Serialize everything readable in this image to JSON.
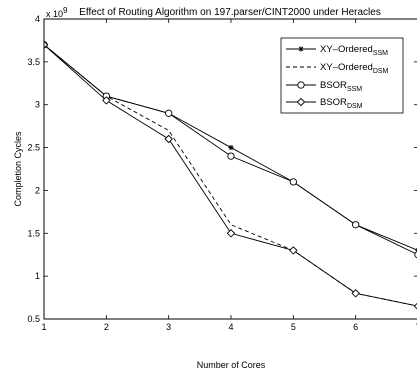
{
  "chart_data": {
    "type": "line",
    "title": "Effect of Routing Algorithm on 197.parser/CINT2000 under Heracles",
    "xlabel": "Number of Cores",
    "ylabel": "Completion Cycles",
    "y_exponent_label": "x 10",
    "y_exponent_power": "9",
    "xlim": [
      1,
      7
    ],
    "ylim": [
      0.5,
      4
    ],
    "x_ticks": [
      1,
      2,
      3,
      4,
      5,
      6,
      7
    ],
    "y_ticks": [
      0.5,
      1,
      1.5,
      2,
      2.5,
      3,
      3.5,
      4
    ],
    "x_tick_labels": [
      "1",
      "2",
      "3",
      "4",
      "5",
      "6",
      "7"
    ],
    "y_tick_labels": [
      "0.5",
      "1",
      "1.5",
      "2",
      "2.5",
      "3",
      "3.5",
      "4"
    ],
    "grid": false,
    "legend_position": "top-right",
    "x": [
      1,
      2,
      3,
      4,
      5,
      6,
      7
    ],
    "series": [
      {
        "name": "XY–Ordered",
        "subscript": "SSM",
        "style": "solid",
        "marker": "asterisk",
        "values": [
          3.7,
          3.1,
          2.9,
          2.5,
          2.1,
          1.6,
          1.3
        ]
      },
      {
        "name": "XY–Ordered",
        "subscript": "DSM",
        "style": "dashed",
        "marker": "none",
        "values": [
          3.7,
          3.1,
          2.7,
          1.6,
          1.3,
          0.8,
          0.65
        ]
      },
      {
        "name": "BSOR",
        "subscript": "SSM",
        "style": "solid",
        "marker": "circle",
        "values": [
          3.7,
          3.1,
          2.9,
          2.4,
          2.1,
          1.6,
          1.25
        ]
      },
      {
        "name": "BSOR",
        "subscript": "DSM",
        "style": "solid",
        "marker": "diamond",
        "values": [
          3.7,
          3.05,
          2.6,
          1.5,
          1.3,
          0.8,
          0.65
        ]
      }
    ]
  }
}
